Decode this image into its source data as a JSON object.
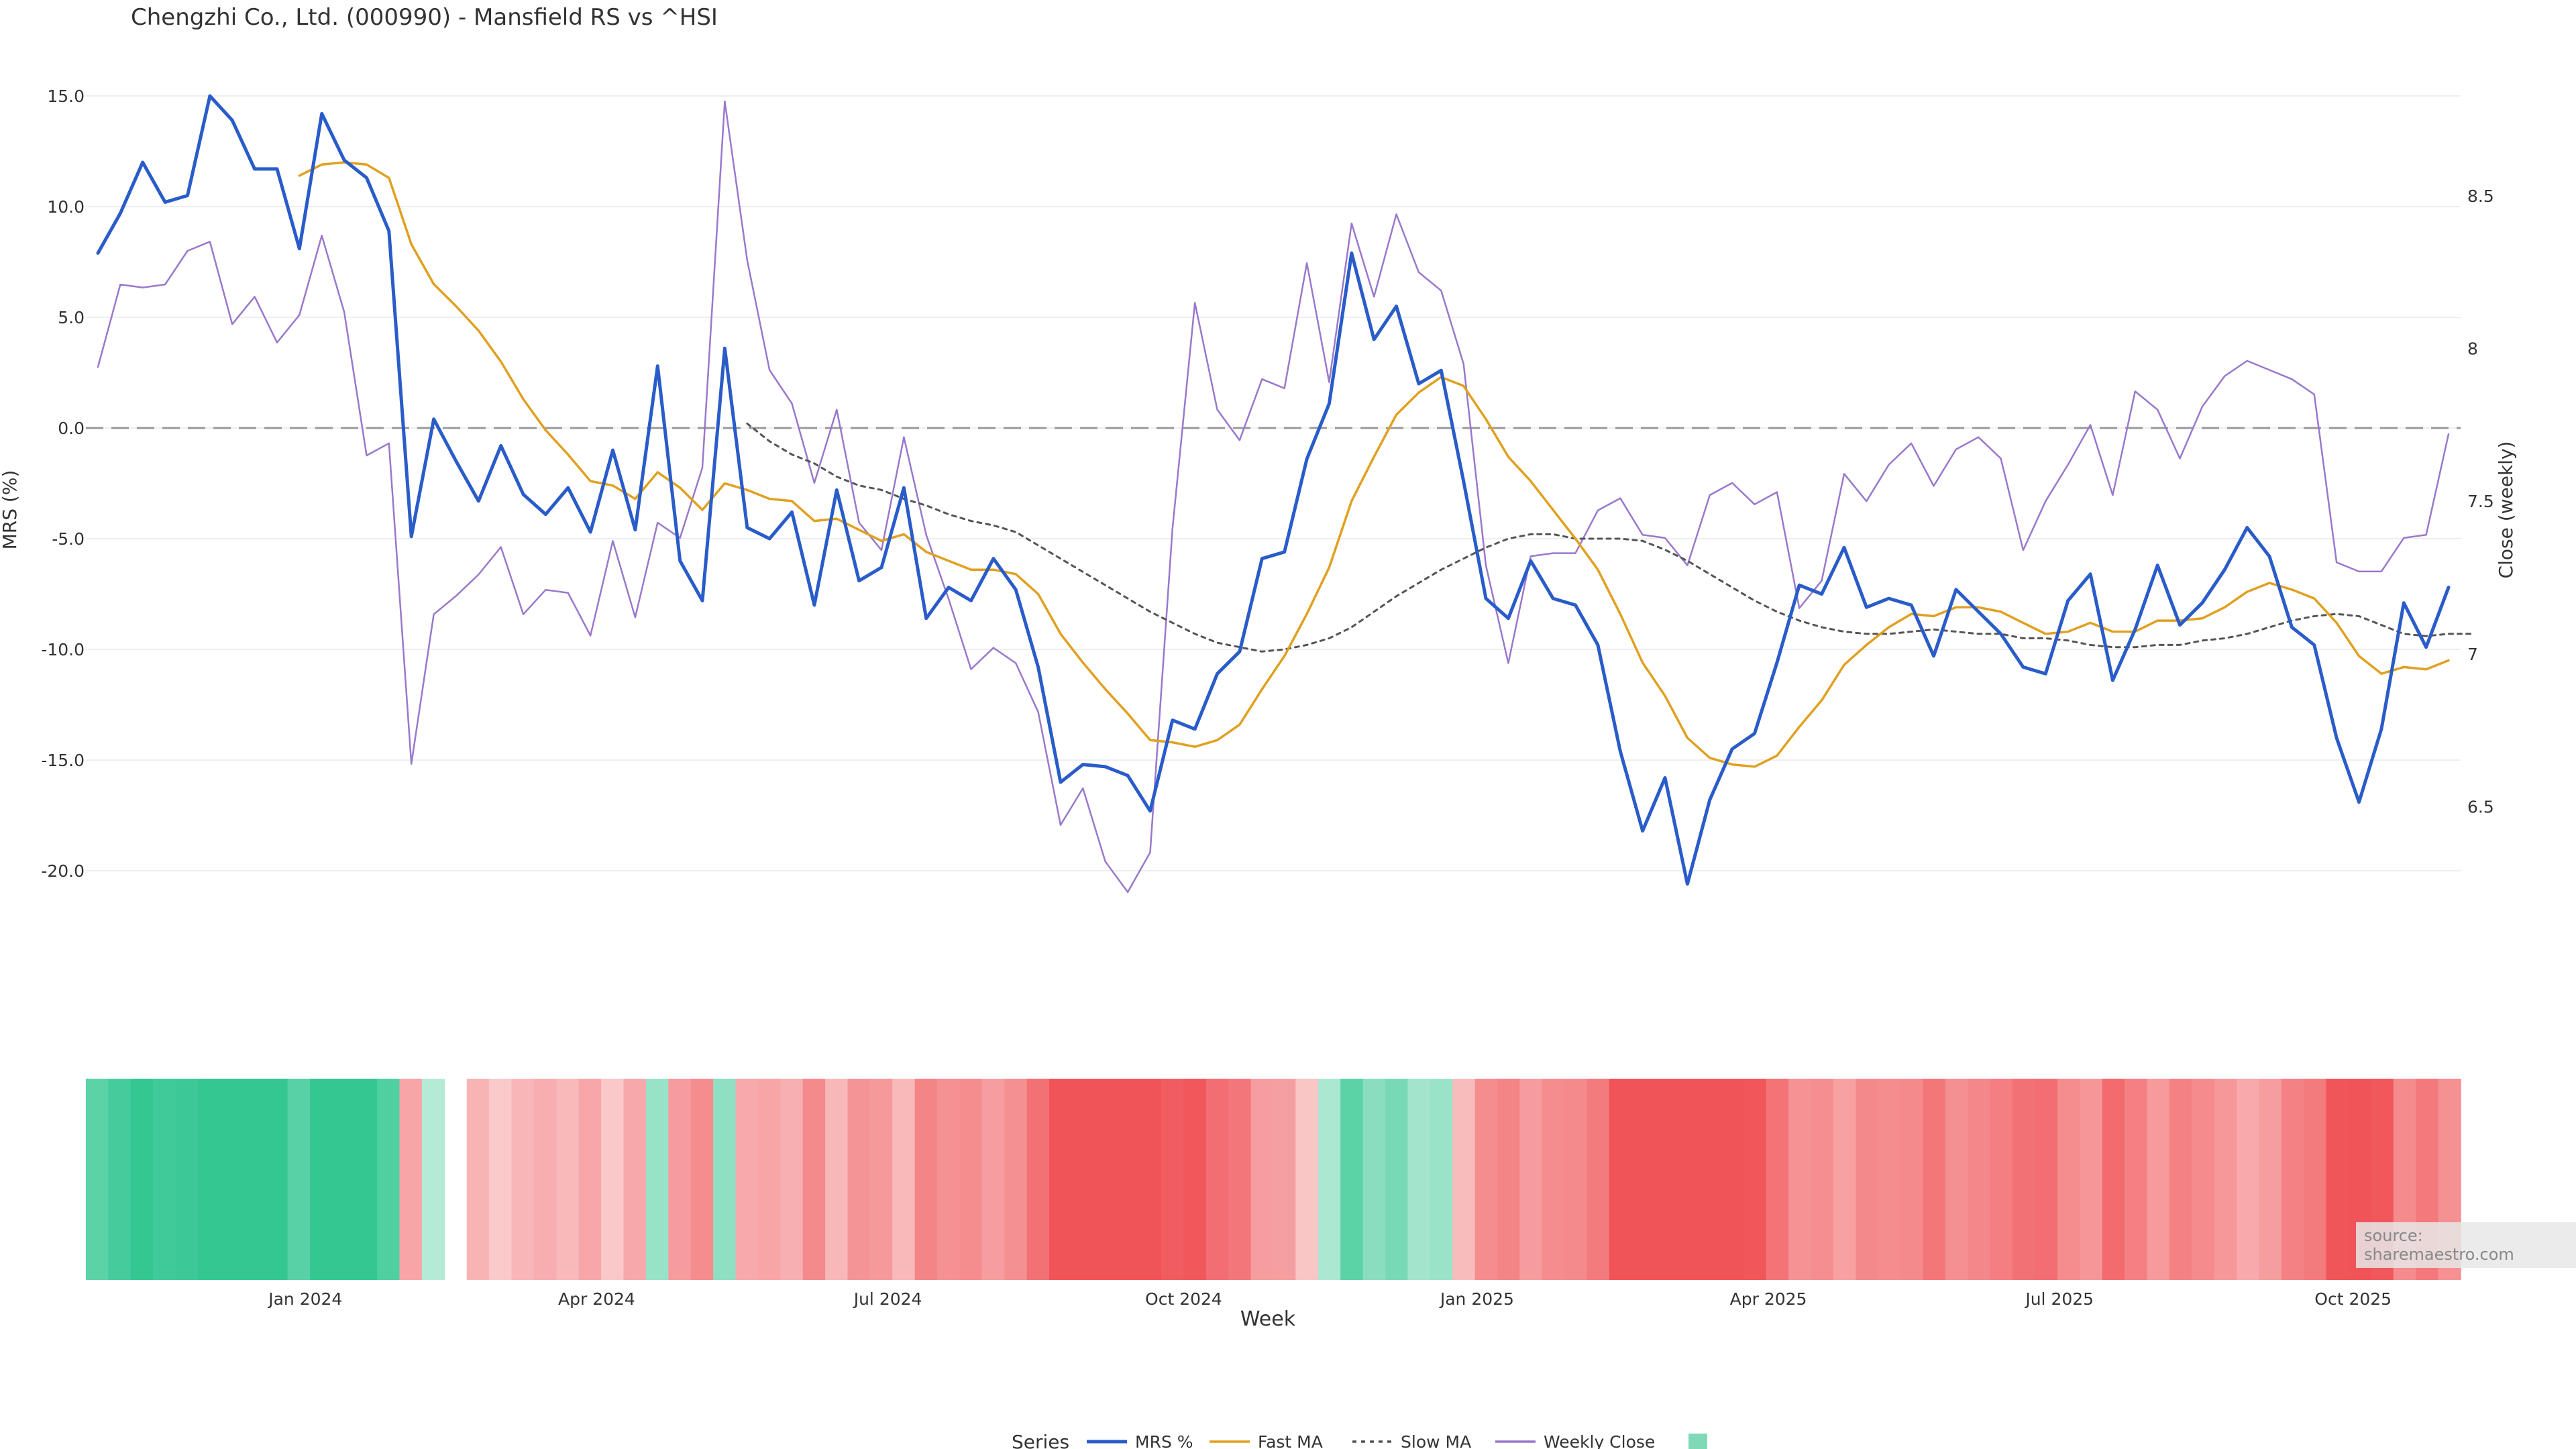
{
  "title": "Chengzhi Co., Ltd. (000990) - Mansfield RS vs ^HSI",
  "watermark": "source: sharemaestro.com",
  "legend": {
    "title": "Series",
    "items": [
      {
        "label": "MRS %",
        "color": "#2a5cc9"
      },
      {
        "label": "Fast MA",
        "color": "#e0a020"
      },
      {
        "label": "Slow MA",
        "color": "#555555"
      },
      {
        "label": "Weekly Close",
        "color": "#9a78cc"
      },
      {
        "label": "",
        "color": "#7fd8b6"
      }
    ]
  },
  "chart_data": {
    "type": "line",
    "xlabel": "Week",
    "ylabel": "MRS (%)",
    "y2label": "Close (weekly)",
    "ylim": [
      -24,
      16
    ],
    "y2lim": [
      6.0,
      8.9
    ],
    "yticks": [
      "15.0",
      "10.0",
      "5.0",
      "0.0",
      "-5.0",
      "-10.0",
      "-15.0",
      "-20.0"
    ],
    "y2ticks": [
      "8.5",
      "8",
      "7.5",
      "7",
      "6.5"
    ],
    "xticks": [
      {
        "label": "Jan 2024",
        "week": 9.8
      },
      {
        "label": "Apr 2024",
        "week": 22.8
      },
      {
        "label": "Jul 2024",
        "week": 35.8
      },
      {
        "label": "Oct 2024",
        "week": 49
      },
      {
        "label": "Jan 2025",
        "week": 62.1
      },
      {
        "label": "Apr 2025",
        "week": 75.1
      },
      {
        "label": "Jul 2025",
        "week": 88.1
      },
      {
        "label": "Oct 2025",
        "week": 101.2
      }
    ],
    "zero_line": 0,
    "series": [
      {
        "name": "MRS %",
        "values": [
          7.9,
          9.7,
          12.0,
          10.2,
          10.5,
          15.0,
          13.9,
          11.7,
          11.7,
          8.1,
          14.2,
          12.1,
          11.3,
          8.9,
          -4.9,
          0.4,
          -1.5,
          -3.3,
          -0.8,
          -3.0,
          -3.9,
          -2.7,
          -4.7,
          -1.0,
          -4.6,
          2.8,
          -6.0,
          -7.8,
          3.6,
          -4.5,
          -5.0,
          -3.8,
          -8.0,
          -2.8,
          -6.9,
          -6.3,
          -2.7,
          -8.6,
          -7.2,
          -7.8,
          -5.9,
          -7.3,
          -10.8,
          -16.0,
          -15.2,
          -15.3,
          -15.7,
          -17.3,
          -13.2,
          -13.6,
          -11.1,
          -10.1,
          -5.9,
          -5.6,
          -1.4,
          1.1,
          7.9,
          4.0,
          5.5,
          2.0,
          2.6,
          -2.4,
          -7.7,
          -8.6,
          -6.0,
          -7.7,
          -8.0,
          -9.8,
          -14.6,
          -18.2,
          -15.8,
          -20.6,
          -16.8,
          -14.5,
          -13.8,
          -10.6,
          -7.1,
          -7.5,
          -5.4,
          -8.1,
          -7.7,
          -8.0,
          -10.3,
          -7.3,
          -8.3,
          -9.3,
          -10.8,
          -11.1,
          -7.8,
          -6.6,
          -11.4,
          -9.1,
          -6.2,
          -8.9,
          -7.9,
          -6.4,
          -4.5,
          -5.8,
          -9.0,
          -9.8,
          -14.0,
          -16.9,
          -13.6,
          -7.9,
          -9.9,
          -7.2
        ]
      },
      {
        "name": "Fast MA",
        "values": [
          null,
          null,
          null,
          null,
          null,
          null,
          null,
          null,
          null,
          11.4,
          11.9,
          12.0,
          11.9,
          11.3,
          8.3,
          6.5,
          5.5,
          4.4,
          3.0,
          1.3,
          -0.1,
          -1.2,
          -2.4,
          -2.6,
          -3.2,
          -2.0,
          -2.7,
          -3.7,
          -2.5,
          -2.8,
          -3.2,
          -3.3,
          -4.2,
          -4.1,
          -4.6,
          -5.1,
          -4.8,
          -5.6,
          -6.0,
          -6.4,
          -6.4,
          -6.6,
          -7.5,
          -9.3,
          -10.6,
          -11.8,
          -12.9,
          -14.1,
          -14.2,
          -14.4,
          -14.1,
          -13.4,
          -11.8,
          -10.3,
          -8.4,
          -6.3,
          -3.3,
          -1.3,
          0.6,
          1.6,
          2.3,
          1.9,
          0.4,
          -1.3,
          -2.4,
          -3.7,
          -5.0,
          -6.4,
          -8.4,
          -10.6,
          -12.1,
          -14.0,
          -14.9,
          -15.2,
          -15.3,
          -14.8,
          -13.5,
          -12.3,
          -10.7,
          -9.8,
          -9.0,
          -8.4,
          -8.5,
          -8.1,
          -8.1,
          -8.3,
          -8.8,
          -9.3,
          -9.2,
          -8.8,
          -9.2,
          -9.2,
          -8.7,
          -8.7,
          -8.6,
          -8.1,
          -7.4,
          -7.0,
          -7.3,
          -7.7,
          -8.8,
          -10.3,
          -11.1,
          -10.8,
          -10.9,
          -10.5
        ]
      },
      {
        "name": "Slow MA",
        "values": [
          null,
          null,
          null,
          null,
          null,
          null,
          null,
          null,
          null,
          null,
          null,
          null,
          null,
          null,
          null,
          null,
          null,
          null,
          null,
          null,
          null,
          null,
          null,
          null,
          null,
          null,
          null,
          null,
          null,
          0.2,
          -0.6,
          -1.2,
          -1.6,
          -2.2,
          -2.6,
          -2.8,
          -3.2,
          -3.5,
          -3.9,
          -4.2,
          -4.4,
          -4.7,
          -5.3,
          -5.9,
          -6.5,
          -7.1,
          -7.7,
          -8.3,
          -8.8,
          -9.3,
          -9.7,
          -9.9,
          -10.1,
          -10.0,
          -9.8,
          -9.5,
          -9.0,
          -8.3,
          -7.6,
          -7.0,
          -6.4,
          -5.9,
          -5.4,
          -5.0,
          -4.8,
          -4.8,
          -5.0,
          -5.0,
          -5.0,
          -5.1,
          -5.5,
          -6.0,
          -6.6,
          -7.2,
          -7.8,
          -8.3,
          -8.7,
          -9.0,
          -9.2,
          -9.3,
          -9.3,
          -9.2,
          -9.1,
          -9.2,
          -9.3,
          -9.3,
          -9.5,
          -9.5,
          -9.6,
          -9.8,
          -9.9,
          -9.9,
          -9.8,
          -9.8,
          -9.6,
          -9.5,
          -9.3,
          -9.0,
          -8.7,
          -8.5,
          -8.4,
          -8.5,
          -8.9,
          -9.3,
          -9.4,
          -9.3,
          -9.3
        ]
      },
      {
        "name": "Weekly Close",
        "axis": "right",
        "values": [
          7.94,
          8.21,
          8.2,
          8.21,
          8.32,
          8.35,
          8.08,
          8.17,
          8.02,
          8.11,
          8.37,
          8.12,
          7.65,
          7.69,
          6.64,
          7.13,
          7.19,
          7.26,
          7.35,
          7.13,
          7.21,
          7.2,
          7.06,
          7.37,
          7.12,
          7.43,
          7.38,
          7.61,
          8.81,
          8.29,
          7.93,
          7.82,
          7.56,
          7.8,
          7.43,
          7.34,
          7.71,
          7.39,
          7.18,
          6.95,
          7.02,
          6.97,
          6.81,
          6.44,
          6.56,
          6.32,
          6.22,
          6.35,
          7.41,
          8.15,
          7.8,
          7.7,
          7.9,
          7.87,
          8.28,
          7.89,
          8.41,
          8.17,
          8.44,
          8.25,
          8.19,
          7.95,
          7.29,
          6.97,
          7.32,
          7.33,
          7.33,
          7.47,
          7.51,
          7.39,
          7.38,
          7.29,
          7.52,
          7.56,
          7.49,
          7.53,
          7.15,
          7.24,
          7.59,
          7.5,
          7.62,
          7.69,
          7.55,
          7.67,
          7.71,
          7.64,
          7.34,
          7.5,
          7.62,
          7.75,
          7.52,
          7.86,
          7.8,
          7.64,
          7.81,
          7.91,
          7.96,
          7.93,
          7.9,
          7.85,
          7.3,
          7.27,
          7.27,
          7.38,
          7.39,
          7.72
        ]
      }
    ],
    "rs_band": {
      "name": "MRS % heat band",
      "weeks": [
        0,
        1,
        2,
        3,
        4,
        5,
        6,
        7,
        8,
        9,
        10,
        11,
        12,
        13,
        14,
        15,
        null,
        17,
        18,
        19,
        20,
        21,
        22,
        23,
        24,
        25,
        26,
        27,
        28,
        29,
        30,
        31,
        32,
        33,
        34,
        35,
        36,
        37,
        38,
        39,
        40,
        41,
        42,
        43,
        44,
        45,
        46,
        47,
        48,
        49,
        50,
        51,
        52,
        53,
        54,
        55,
        56,
        57,
        58,
        59,
        60,
        61,
        62,
        63,
        64,
        65,
        66,
        67,
        68,
        69,
        70,
        71,
        72,
        73,
        74,
        75,
        76,
        77,
        78,
        79,
        80,
        81,
        82,
        83,
        84,
        85,
        86,
        87,
        88,
        89,
        90,
        91,
        92,
        93,
        94,
        95,
        96,
        97,
        98,
        99,
        100,
        101,
        102,
        103,
        104,
        105
      ]
    }
  }
}
